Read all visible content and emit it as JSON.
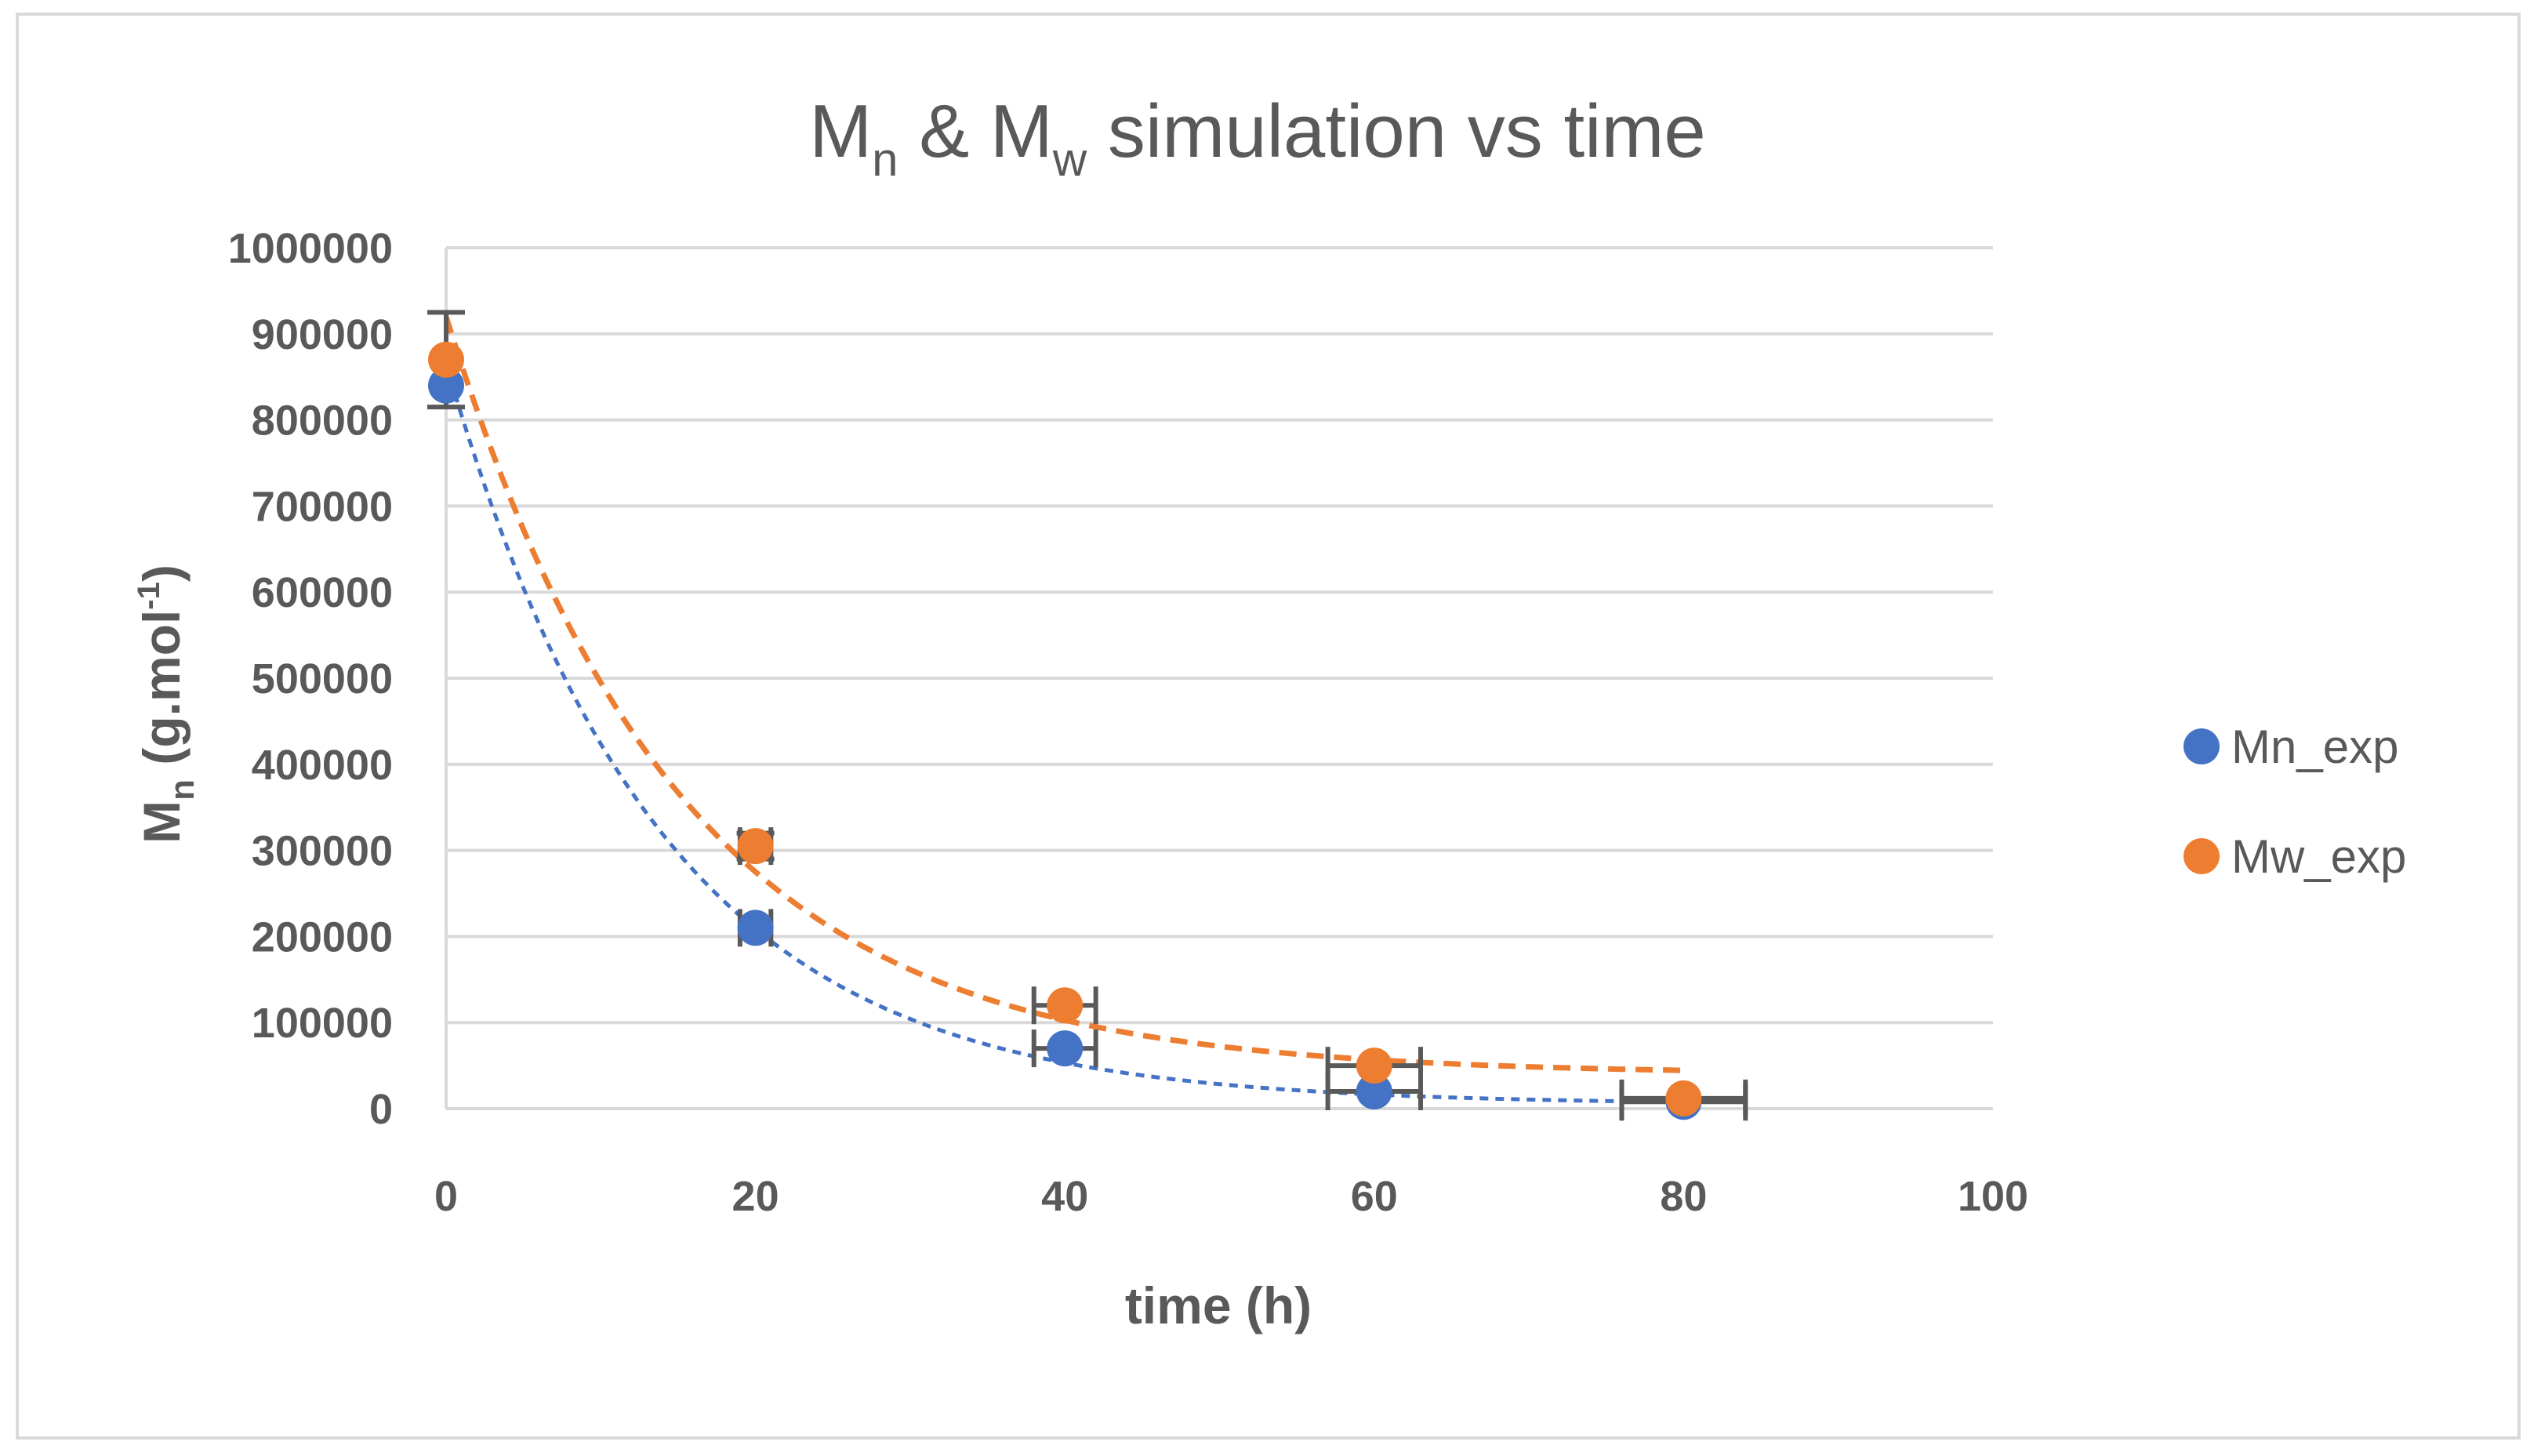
{
  "chart_data": {
    "type": "scatter",
    "title_main": "M",
    "title_sub_1": "n",
    "title_mid": " & M",
    "title_sub_2": "w",
    "title_tail": " simulation vs time",
    "xlabel": "time (h)",
    "ylabel_main": "M",
    "ylabel_sub": "n",
    "ylabel_rest": " (g.mol",
    "ylabel_sup": "-1",
    "ylabel_close": ")",
    "xlim": [
      0,
      100
    ],
    "ylim": [
      0,
      1000000
    ],
    "x_ticks": [
      "0",
      "20",
      "40",
      "60",
      "80",
      "100"
    ],
    "y_ticks": [
      "0",
      "100000",
      "200000",
      "300000",
      "400000",
      "500000",
      "600000",
      "700000",
      "800000",
      "900000",
      "1000000"
    ],
    "grid": true,
    "legend_position": "right",
    "series": [
      {
        "name": "Mn_exp",
        "color": "#4472c4",
        "x": [
          0,
          20,
          40,
          60,
          80
        ],
        "y": [
          840000,
          210000,
          70000,
          20000,
          8000
        ],
        "x_err": [
          0,
          1,
          2,
          3,
          4
        ],
        "y_err": [
          0,
          0,
          0,
          0,
          0
        ],
        "trend": "dotted",
        "trend_y0": 860000,
        "trend_k": 0.072,
        "trend_c": 5000
      },
      {
        "name": "Mw_exp",
        "color": "#ed7d31",
        "x": [
          0,
          20,
          40,
          60,
          80
        ],
        "y": [
          870000,
          305000,
          120000,
          50000,
          12000
        ],
        "x_err": [
          0,
          1,
          2,
          3,
          4
        ],
        "y_err": [
          55000,
          15000,
          0,
          0,
          0
        ],
        "trend": "dashed",
        "trend_y0": 880000,
        "trend_k": 0.066,
        "trend_c": 40000
      }
    ]
  }
}
